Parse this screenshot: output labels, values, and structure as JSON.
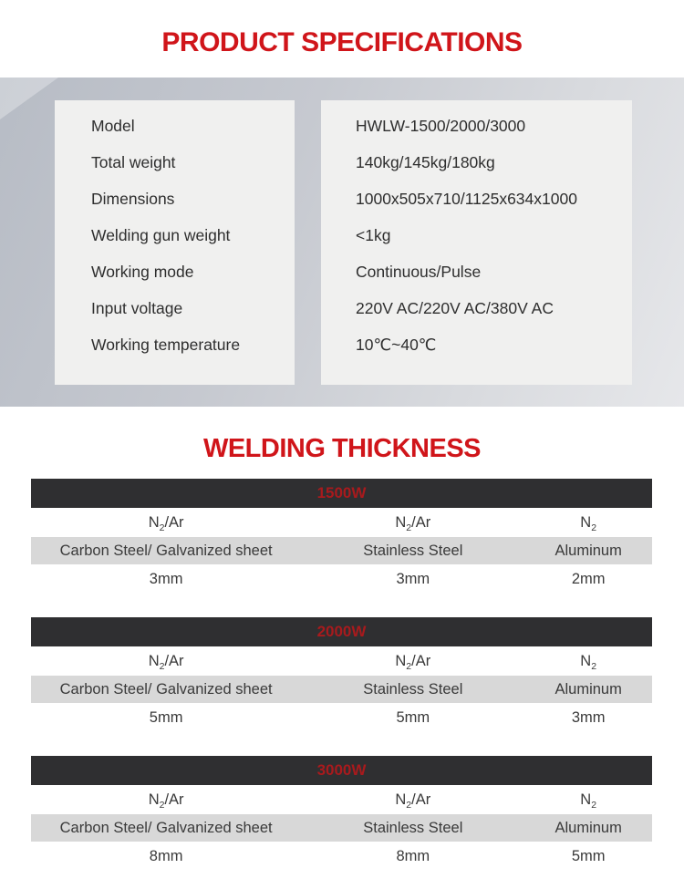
{
  "colors": {
    "title_red": "#d0151a",
    "power_red": "#a81a1d",
    "bar_dark": "#2f2f31",
    "box_grey": "#f0f0ef",
    "row_grey": "#d8d8d8",
    "text_dark": "#2e2e2e"
  },
  "header": {
    "title": "PRODUCT SPECIFICATIONS"
  },
  "specs": {
    "rows": [
      {
        "label": "Model",
        "value": "HWLW-1500/2000/3000"
      },
      {
        "label": "Total weight",
        "value": "140kg/145kg/180kg"
      },
      {
        "label": "Dimensions",
        "value": "1000x505x710/1125x634x1000"
      },
      {
        "label": "Welding gun weight",
        "value": "<1kg"
      },
      {
        "label": "Working mode",
        "value": "Continuous/Pulse"
      },
      {
        "label": "Input voltage",
        "value": "220V AC/220V AC/380V AC"
      },
      {
        "label": "Working temperature",
        "value": "10℃~40℃"
      }
    ]
  },
  "thickness": {
    "title": "WELDING THICKNESS",
    "tables": [
      {
        "power": "1500W",
        "gases": [
          {
            "base": "N",
            "sub": "2",
            "suffix": "/Ar"
          },
          {
            "base": "N",
            "sub": "2",
            "suffix": "/Ar"
          },
          {
            "base": "N",
            "sub": "2",
            "suffix": ""
          }
        ],
        "materials": [
          "Carbon Steel/ Galvanized sheet",
          "Stainless Steel",
          "Aluminum"
        ],
        "values": [
          "3mm",
          "3mm",
          "2mm"
        ]
      },
      {
        "power": "2000W",
        "gases": [
          {
            "base": "N",
            "sub": "2",
            "suffix": "/Ar"
          },
          {
            "base": "N",
            "sub": "2",
            "suffix": "/Ar"
          },
          {
            "base": "N",
            "sub": "2",
            "suffix": ""
          }
        ],
        "materials": [
          "Carbon Steel/ Galvanized sheet",
          "Stainless Steel",
          "Aluminum"
        ],
        "values": [
          "5mm",
          "5mm",
          "3mm"
        ]
      },
      {
        "power": "3000W",
        "gases": [
          {
            "base": "N",
            "sub": "2",
            "suffix": "/Ar"
          },
          {
            "base": "N",
            "sub": "2",
            "suffix": "/Ar"
          },
          {
            "base": "N",
            "sub": "2",
            "suffix": ""
          }
        ],
        "materials": [
          "Carbon Steel/ Galvanized sheet",
          "Stainless Steel",
          "Aluminum"
        ],
        "values": [
          "8mm",
          "8mm",
          "5mm"
        ]
      }
    ]
  }
}
